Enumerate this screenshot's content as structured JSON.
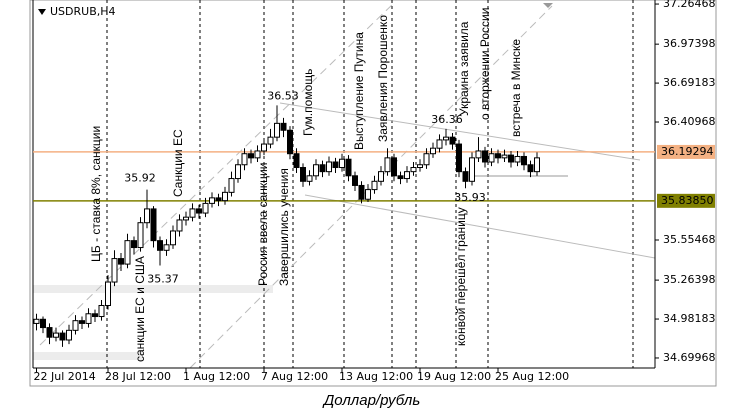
{
  "chart_data": {
    "type": "candlestick",
    "title": "USDRUB,H4",
    "caption": "Доллар/рубль",
    "categories": [
      "22 Jul 2014",
      null,
      null,
      null,
      null,
      null,
      null,
      null,
      null,
      null,
      null,
      "28 Jul 12:00",
      null,
      null,
      null,
      null,
      null,
      null,
      null,
      null,
      null,
      null,
      null,
      "1 Aug 12:00",
      null,
      null,
      null,
      null,
      null,
      null,
      null,
      null,
      null,
      null,
      null,
      "7 Aug 12:00",
      null,
      null,
      null,
      null,
      null,
      null,
      null,
      null,
      null,
      null,
      null,
      "13 Aug 12:00",
      null,
      null,
      null,
      null,
      null,
      null,
      null,
      null,
      null,
      null,
      null,
      "19 Aug 12:00",
      null,
      null,
      null,
      null,
      null,
      null,
      null,
      null,
      null,
      null,
      null,
      "25 Aug 12:00",
      null,
      null,
      null,
      null,
      null,
      null
    ],
    "open": [
      34.95,
      34.98,
      34.92,
      34.85,
      34.88,
      34.83,
      34.9,
      34.97,
      34.95,
      35.02,
      35.0,
      35.08,
      35.25,
      35.42,
      35.38,
      35.55,
      35.5,
      35.68,
      35.78,
      35.55,
      35.48,
      35.52,
      35.62,
      35.7,
      35.72,
      35.78,
      35.75,
      35.82,
      35.86,
      35.84,
      35.9,
      36.0,
      36.1,
      36.18,
      36.15,
      36.2,
      36.25,
      36.3,
      36.4,
      36.35,
      36.18,
      36.08,
      35.98,
      36.02,
      36.1,
      36.05,
      36.12,
      36.08,
      36.14,
      36.02,
      35.95,
      35.85,
      35.92,
      35.98,
      36.05,
      36.15,
      36.02,
      36.0,
      36.05,
      36.08,
      36.1,
      36.18,
      36.22,
      36.28,
      36.3,
      36.25,
      36.05,
      35.98,
      36.15,
      36.2,
      36.12,
      36.18,
      36.15,
      36.17,
      36.12,
      36.16,
      36.1,
      36.05
    ],
    "high": [
      35.02,
      35.0,
      34.95,
      34.92,
      34.9,
      34.94,
      35.01,
      35.0,
      35.06,
      35.05,
      35.12,
      35.3,
      35.48,
      35.46,
      35.6,
      35.58,
      35.72,
      35.92,
      35.8,
      35.58,
      35.56,
      35.66,
      35.74,
      35.76,
      35.82,
      35.81,
      35.86,
      35.9,
      35.89,
      35.94,
      36.05,
      36.14,
      36.22,
      36.21,
      36.24,
      36.29,
      36.36,
      36.53,
      36.44,
      36.38,
      36.22,
      36.11,
      36.06,
      36.14,
      36.13,
      36.16,
      36.15,
      36.18,
      36.17,
      36.05,
      35.98,
      35.96,
      36.02,
      36.09,
      36.22,
      36.18,
      36.05,
      36.09,
      36.12,
      36.14,
      36.22,
      36.26,
      36.32,
      36.36,
      36.33,
      36.28,
      36.08,
      36.19,
      36.3,
      36.23,
      36.22,
      36.21,
      36.21,
      36.2,
      36.2,
      36.19,
      36.13,
      36.19
    ],
    "low": [
      34.9,
      34.88,
      34.8,
      34.82,
      34.78,
      34.8,
      34.87,
      34.91,
      34.92,
      34.96,
      34.97,
      35.05,
      35.22,
      35.33,
      35.35,
      35.45,
      35.47,
      35.64,
      35.5,
      35.37,
      35.44,
      35.49,
      35.58,
      35.66,
      35.69,
      35.71,
      35.72,
      35.79,
      35.8,
      35.81,
      35.87,
      35.97,
      36.06,
      36.11,
      36.12,
      36.17,
      36.22,
      36.27,
      36.3,
      36.14,
      36.04,
      35.94,
      35.95,
      35.99,
      36.01,
      36.02,
      36.04,
      36.05,
      35.98,
      35.91,
      35.82,
      35.83,
      35.89,
      35.95,
      36.02,
      35.98,
      35.96,
      35.97,
      36.02,
      36.05,
      36.07,
      36.15,
      36.19,
      36.24,
      36.21,
      36.01,
      35.93,
      35.95,
      36.12,
      36.08,
      36.09,
      36.11,
      36.12,
      36.08,
      36.09,
      36.06,
      36.01,
      36.02
    ],
    "close": [
      34.98,
      34.92,
      34.85,
      34.88,
      34.83,
      34.9,
      34.97,
      34.95,
      35.02,
      35.0,
      35.08,
      35.25,
      35.42,
      35.38,
      35.55,
      35.5,
      35.68,
      35.78,
      35.55,
      35.48,
      35.52,
      35.62,
      35.7,
      35.72,
      35.78,
      35.75,
      35.82,
      35.86,
      35.84,
      35.9,
      36.0,
      36.1,
      36.18,
      36.15,
      36.2,
      36.25,
      36.3,
      36.4,
      36.35,
      36.18,
      36.08,
      35.98,
      36.02,
      36.1,
      36.05,
      36.12,
      36.08,
      36.14,
      36.02,
      35.95,
      35.85,
      35.92,
      35.98,
      36.05,
      36.15,
      36.02,
      36.0,
      36.05,
      36.08,
      36.1,
      36.18,
      36.22,
      36.28,
      36.3,
      36.25,
      36.05,
      35.98,
      36.15,
      36.2,
      36.12,
      36.18,
      36.15,
      36.17,
      36.12,
      36.16,
      36.1,
      36.05,
      36.15
    ],
    "up_color": "#ffffff",
    "down_color": "#000000",
    "edge_color": "#000000",
    "ylim": [
      34.627,
      37.294
    ],
    "yticks": [
      37.26468,
      36.97398,
      36.69183,
      36.40968,
      35.55468,
      35.26398,
      34.98183,
      34.69968
    ],
    "levels": [
      {
        "value": 36.19294,
        "color": "#f4b183"
      },
      {
        "value": 35.8385,
        "label": "35.83850",
        "color": "#808000"
      }
    ],
    "price_notes": [
      36.53,
      35.92,
      35.37,
      36.36,
      35.93
    ],
    "annotations": [
      "ЦБ - ставка 8%, санкции",
      "санкции ЕС и США",
      "Санкции ЕС",
      "Россия ввела санкции",
      "Завершились учения",
      "Гум.помощь",
      "Выступление Путина",
      "Заявления Порошенко",
      "Украина заявила",
      "о вторжении России",
      "конвой перешёл границу",
      "встреча в Минске"
    ]
  }
}
